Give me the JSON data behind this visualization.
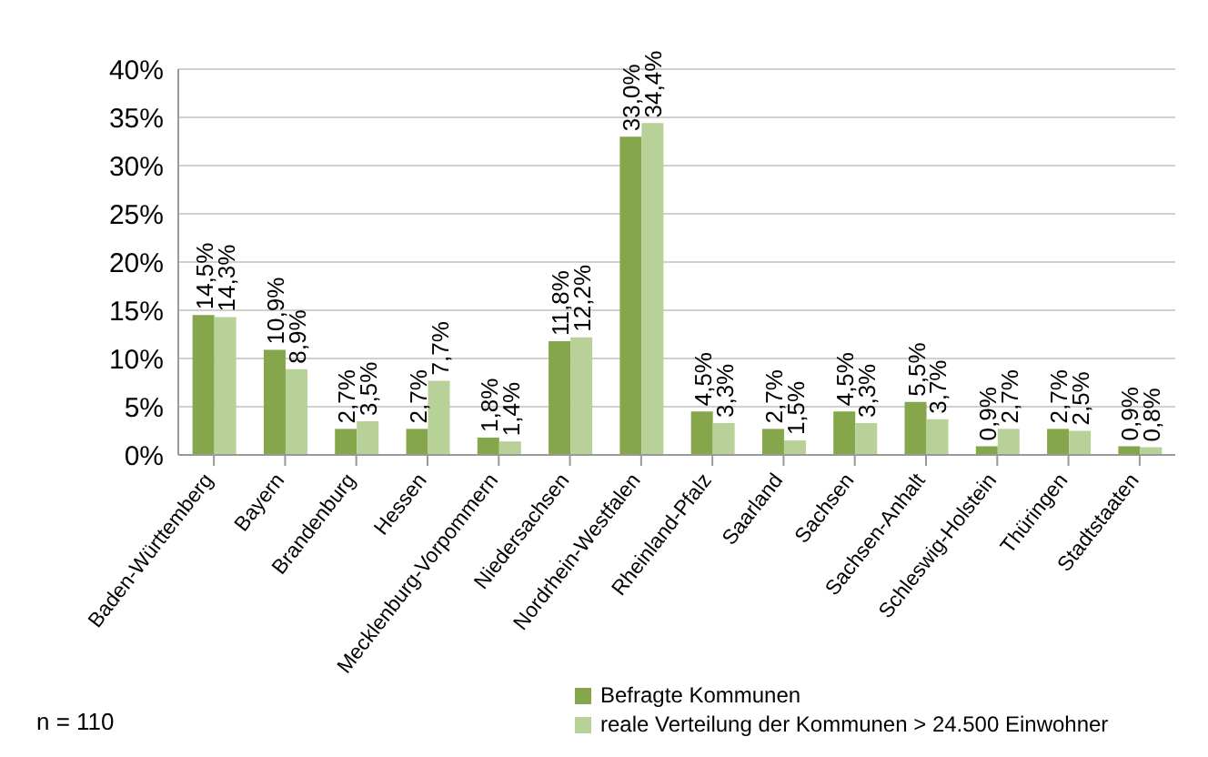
{
  "chart_data": {
    "type": "bar",
    "categories": [
      "Baden-Württemberg",
      "Bayern",
      "Brandenburg",
      "Hessen",
      "Mecklenburg-Vorpommern",
      "Niedersachsen",
      "Nordrhein-Westfalen",
      "Rheinland-Pfalz",
      "Saarland",
      "Sachsen",
      "Sachsen-Anhalt",
      "Schleswig-Holstein",
      "Thüringen",
      "Stadtstaaten"
    ],
    "series": [
      {
        "name": "Befragte Kommunen",
        "color": "#86a64c",
        "values": [
          14.5,
          10.9,
          2.7,
          2.7,
          1.8,
          11.8,
          33.0,
          4.5,
          2.7,
          4.5,
          5.5,
          0.9,
          2.7,
          0.9
        ],
        "value_labels": [
          "14,5%",
          "10,9%",
          "2,7%",
          "2,7%",
          "1,8%",
          "11,8%",
          "33,0%",
          "4,5%",
          "2,7%",
          "4,5%",
          "5,5%",
          "0,9%",
          "2,7%",
          "0,9%"
        ]
      },
      {
        "name": "reale Verteilung der Kommunen > 24.500 Einwohner",
        "color": "#b8d198",
        "values": [
          14.3,
          8.9,
          3.5,
          7.7,
          1.4,
          12.2,
          34.4,
          3.3,
          1.5,
          3.3,
          3.7,
          2.7,
          2.5,
          0.8
        ],
        "value_labels": [
          "14,3%",
          "8,9%",
          "3,5%",
          "7,7%",
          "1,4%",
          "12,2%",
          "34,4%",
          "3,3%",
          "1,5%",
          "3,3%",
          "3,7%",
          "2,7%",
          "2,5%",
          "0,8%"
        ]
      }
    ],
    "ylim": [
      0,
      40
    ],
    "yticks": [
      {
        "value": 0,
        "label": "0%"
      },
      {
        "value": 5,
        "label": "5%"
      },
      {
        "value": 10,
        "label": "10%"
      },
      {
        "value": 15,
        "label": "15%"
      },
      {
        "value": 20,
        "label": "20%"
      },
      {
        "value": 25,
        "label": "25%"
      },
      {
        "value": 30,
        "label": "30%"
      },
      {
        "value": 35,
        "label": "35%"
      },
      {
        "value": 40,
        "label": "40%"
      }
    ],
    "grid": "y",
    "legend": "bottom right",
    "annotations": [
      "n = 110"
    ]
  }
}
